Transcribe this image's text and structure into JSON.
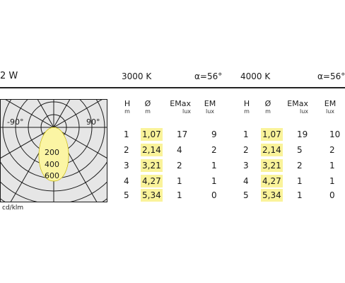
{
  "header": {
    "title": "2 W",
    "cct_a": "3000 K",
    "alpha_a": "α=56°",
    "cct_b": "4000 K",
    "alpha_b": "α=56°"
  },
  "polar": {
    "angle_left": "-90°",
    "angle_right": "90°",
    "ring_labels": [
      "200",
      "400",
      "600"
    ],
    "unit": "cd/klm",
    "curve_color": "#fbf5a4"
  },
  "columns": {
    "h": {
      "label": "H",
      "unit": "m"
    },
    "d": {
      "label": "Ø",
      "unit": "m"
    },
    "emax": {
      "label": "EMax",
      "unit": "lux"
    },
    "em": {
      "label": "EM",
      "unit": "lux"
    }
  },
  "chart_data": {
    "type": "table",
    "groups": [
      {
        "cct": "3000 K",
        "beam_angle": "α=56°",
        "rows": [
          {
            "h": "1",
            "d": "1,07",
            "emax": "17",
            "em": "9"
          },
          {
            "h": "2",
            "d": "2,14",
            "emax": "4",
            "em": "2"
          },
          {
            "h": "3",
            "d": "3,21",
            "emax": "2",
            "em": "1"
          },
          {
            "h": "4",
            "d": "4,27",
            "emax": "1",
            "em": "1"
          },
          {
            "h": "5",
            "d": "5,34",
            "emax": "1",
            "em": "0"
          }
        ]
      },
      {
        "cct": "4000 K",
        "beam_angle": "α=56°",
        "rows": [
          {
            "h": "1",
            "d": "1,07",
            "emax": "19",
            "em": "10"
          },
          {
            "h": "2",
            "d": "2,14",
            "emax": "5",
            "em": "2"
          },
          {
            "h": "3",
            "d": "3,21",
            "emax": "2",
            "em": "1"
          },
          {
            "h": "4",
            "d": "4,27",
            "emax": "1",
            "em": "1"
          },
          {
            "h": "5",
            "d": "5,34",
            "emax": "1",
            "em": "0"
          }
        ]
      }
    ],
    "highlight_color": "#faf39a"
  }
}
